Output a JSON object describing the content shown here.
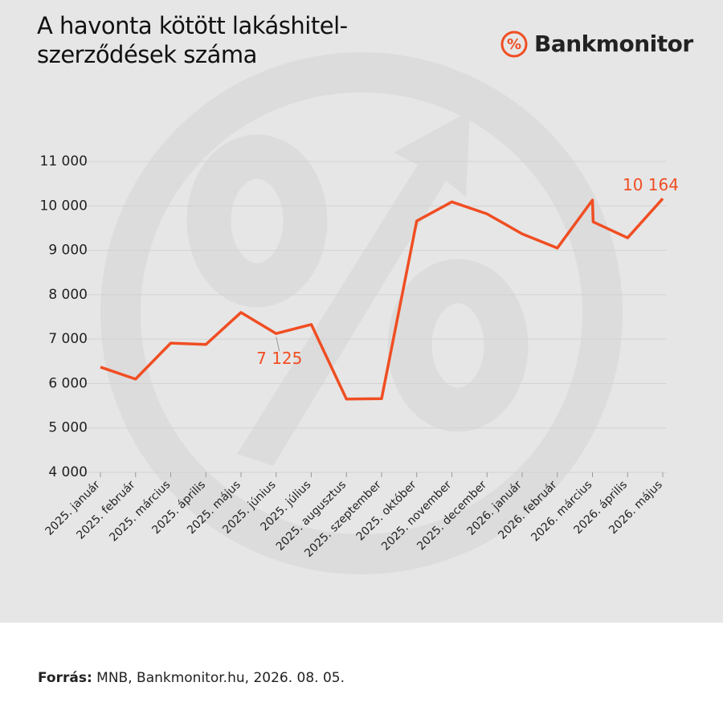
{
  "chart_data": {
    "type": "line",
    "title": "A havonta kötött lakáshitel-\nszerződések száma",
    "brand": "Bankmonitor",
    "source_label": "Forrás:",
    "source": "MNB, Bankmonitor.hu, 2026. 08. 05.",
    "x": [
      0,
      1,
      2,
      3,
      4,
      5,
      6,
      7,
      8,
      9,
      10,
      11,
      12,
      13,
      14,
      14.02,
      15,
      16
    ],
    "xlim": [
      0,
      16
    ],
    "xticks": [
      {
        "value": 0,
        "label": "2025. január"
      },
      {
        "value": 1,
        "label": "2025. február"
      },
      {
        "value": 2,
        "label": "2025. március"
      },
      {
        "value": 3,
        "label": "2025. április"
      },
      {
        "value": 4,
        "label": "2025. május"
      },
      {
        "value": 5,
        "label": "2025. június"
      },
      {
        "value": 6,
        "label": "2025. július"
      },
      {
        "value": 7,
        "label": "2025. augusztus"
      },
      {
        "value": 8,
        "label": "2025. szeptember"
      },
      {
        "value": 9,
        "label": "2025. október"
      },
      {
        "value": 10,
        "label": "2025. november"
      },
      {
        "value": 11,
        "label": "2025. december"
      },
      {
        "value": 12,
        "label": "2026. január"
      },
      {
        "value": 13,
        "label": "2026. február"
      },
      {
        "value": 14,
        "label": "2026. március"
      },
      {
        "value": 15,
        "label": "2026. április"
      },
      {
        "value": 16,
        "label": "2026. május"
      }
    ],
    "series": [
      {
        "color": "#f04e23",
        "values": [
          6370,
          6100,
          6910,
          6880,
          7600,
          7125,
          7330,
          5650,
          5660,
          9660,
          10090,
          9820,
          9370,
          9050,
          10130,
          9640,
          9280,
          10164
        ],
        "value_labels": [
          null,
          null,
          null,
          null,
          null,
          "7 125",
          null,
          null,
          null,
          null,
          null,
          null,
          null,
          null,
          null,
          null,
          null,
          "10 164"
        ]
      }
    ],
    "ylim": [
      4000,
      11000
    ],
    "yticks": [
      {
        "value": 4000,
        "label": "4 000"
      },
      {
        "value": 5000,
        "label": "5 000"
      },
      {
        "value": 6000,
        "label": "6 000"
      },
      {
        "value": 7000,
        "label": "7 000"
      },
      {
        "value": 8000,
        "label": "8 000"
      },
      {
        "value": 9000,
        "label": "9 000"
      },
      {
        "value": 10000,
        "label": "10 000"
      },
      {
        "value": 11000,
        "label": "11 000"
      }
    ],
    "grid": true
  }
}
